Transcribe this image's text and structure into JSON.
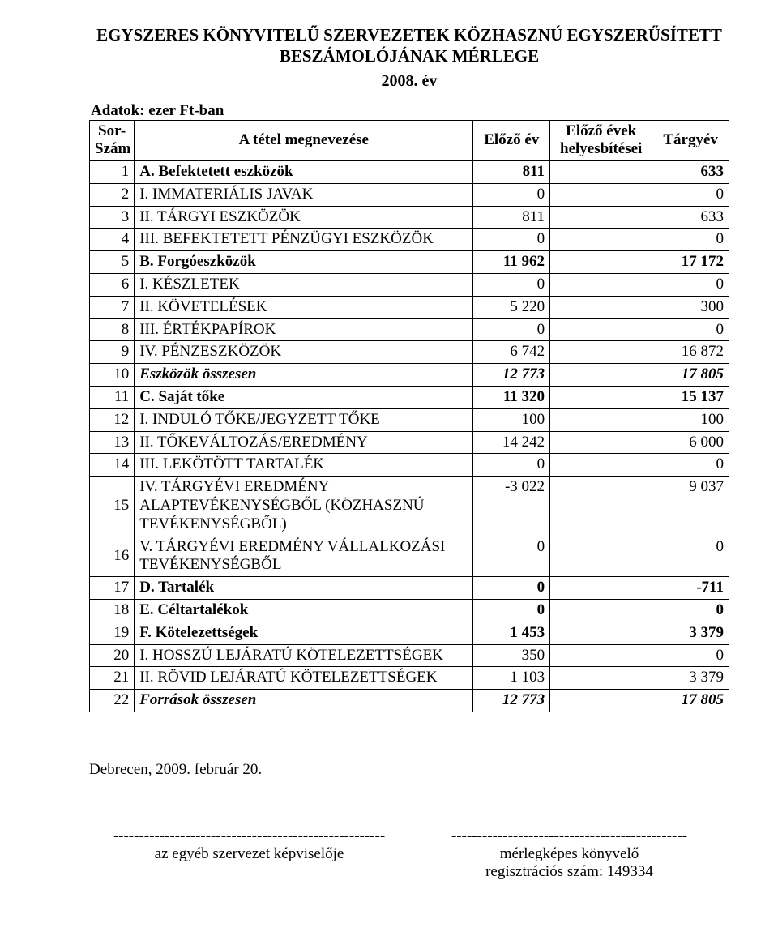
{
  "title_line1": "EGYSZERES KÖNYVITELŰ SZERVEZETEK KÖZHASZNÚ EGYSZERŰSÍTETT",
  "title_line2": "BESZÁMOLÓJÁNAK MÉRLEGE",
  "year": "2008. év",
  "units": "Adatok: ezer Ft-ban",
  "header": {
    "col1a": "Sor-",
    "col1b": "Szám",
    "col2": "A tétel megnevezése",
    "col3": "Előző év",
    "col4a": "Előző évek",
    "col4b": "helyesbítései",
    "col5": "Tárgyév"
  },
  "rows": [
    {
      "n": "1",
      "label": "A. Befektetett eszközök",
      "prev": "811",
      "corr": "",
      "curr": "633",
      "cls": "bold"
    },
    {
      "n": "2",
      "label": "I. IMMATERIÁLIS JAVAK",
      "prev": "0",
      "corr": "",
      "curr": "0",
      "cls": ""
    },
    {
      "n": "3",
      "label": "II. TÁRGYI ESZKÖZÖK",
      "prev": "811",
      "corr": "",
      "curr": "633",
      "cls": ""
    },
    {
      "n": "4",
      "label": "III. BEFEKTETETT PÉNZÜGYI ESZKÖZÖK",
      "prev": "0",
      "corr": "",
      "curr": "0",
      "cls": ""
    },
    {
      "n": "5",
      "label": "B. Forgóeszközök",
      "prev": "11 962",
      "corr": "",
      "curr": "17 172",
      "cls": "bold"
    },
    {
      "n": "6",
      "label": "I. KÉSZLETEK",
      "prev": "0",
      "corr": "",
      "curr": "0",
      "cls": ""
    },
    {
      "n": "7",
      "label": "II. KÖVETELÉSEK",
      "prev": "5 220",
      "corr": "",
      "curr": "300",
      "cls": ""
    },
    {
      "n": "8",
      "label": "III. ÉRTÉKPAPÍROK",
      "prev": "0",
      "corr": "",
      "curr": "0",
      "cls": ""
    },
    {
      "n": "9",
      "label": "IV. PÉNZESZKÖZÖK",
      "prev": "6 742",
      "corr": "",
      "curr": "16 872",
      "cls": ""
    },
    {
      "n": "10",
      "label": "Eszközök összesen",
      "prev": "12 773",
      "corr": "",
      "curr": "17 805",
      "cls": "italic"
    },
    {
      "n": "11",
      "label": "C. Saját tőke",
      "prev": "11 320",
      "corr": "",
      "curr": "15 137",
      "cls": "bold"
    },
    {
      "n": "12",
      "label": "I. INDULÓ TŐKE/JEGYZETT TŐKE",
      "prev": "100",
      "corr": "",
      "curr": "100",
      "cls": ""
    },
    {
      "n": "13",
      "label": "II. TŐKEVÁLTOZÁS/EREDMÉNY",
      "prev": "14 242",
      "corr": "",
      "curr": "6 000",
      "cls": ""
    },
    {
      "n": "14",
      "label": "III. LEKÖTÖTT TARTALÉK",
      "prev": "0",
      "corr": "",
      "curr": "0",
      "cls": ""
    },
    {
      "n": "15",
      "label": "IV. TÁRGYÉVI EREDMÉNY ALAPTEVÉKENYSÉGBŐL (KÖZHASZNÚ TEVÉKENYSÉGBŐL)",
      "prev": "-3 022",
      "corr": "",
      "curr": "9 037",
      "cls": ""
    },
    {
      "n": "16",
      "label": "V. TÁRGYÉVI EREDMÉNY VÁLLALKOZÁSI TEVÉKENYSÉGBŐL",
      "prev": "0",
      "corr": "",
      "curr": "0",
      "cls": ""
    },
    {
      "n": "17",
      "label": "D. Tartalék",
      "prev": "0",
      "corr": "",
      "curr": "-711",
      "cls": "bold"
    },
    {
      "n": "18",
      "label": "E. Céltartalékok",
      "prev": "0",
      "corr": "",
      "curr": "0",
      "cls": "bold"
    },
    {
      "n": "19",
      "label": "F. Kötelezettségek",
      "prev": "1 453",
      "corr": "",
      "curr": "3 379",
      "cls": "bold"
    },
    {
      "n": "20",
      "label": "I. HOSSZÚ LEJÁRATÚ KÖTELEZETTSÉGEK",
      "prev": "350",
      "corr": "",
      "curr": "0",
      "cls": ""
    },
    {
      "n": "21",
      "label": "II. RÖVID LEJÁRATÚ KÖTELEZETTSÉGEK",
      "prev": "1 103",
      "corr": "",
      "curr": "3 379",
      "cls": ""
    },
    {
      "n": "22",
      "label": "Források összesen",
      "prev": "12 773",
      "corr": "",
      "curr": "17 805",
      "cls": "italic"
    }
  ],
  "footer": {
    "date": "Debrecen, 2009. február 20.",
    "left_dashes": "-----------------------------------------------------",
    "left_caption": "az egyéb szervezet képviselője",
    "right_dashes": "----------------------------------------------",
    "right_caption1": "mérlegképes könyvelő",
    "right_caption2": "regisztrációs szám: 149334"
  }
}
